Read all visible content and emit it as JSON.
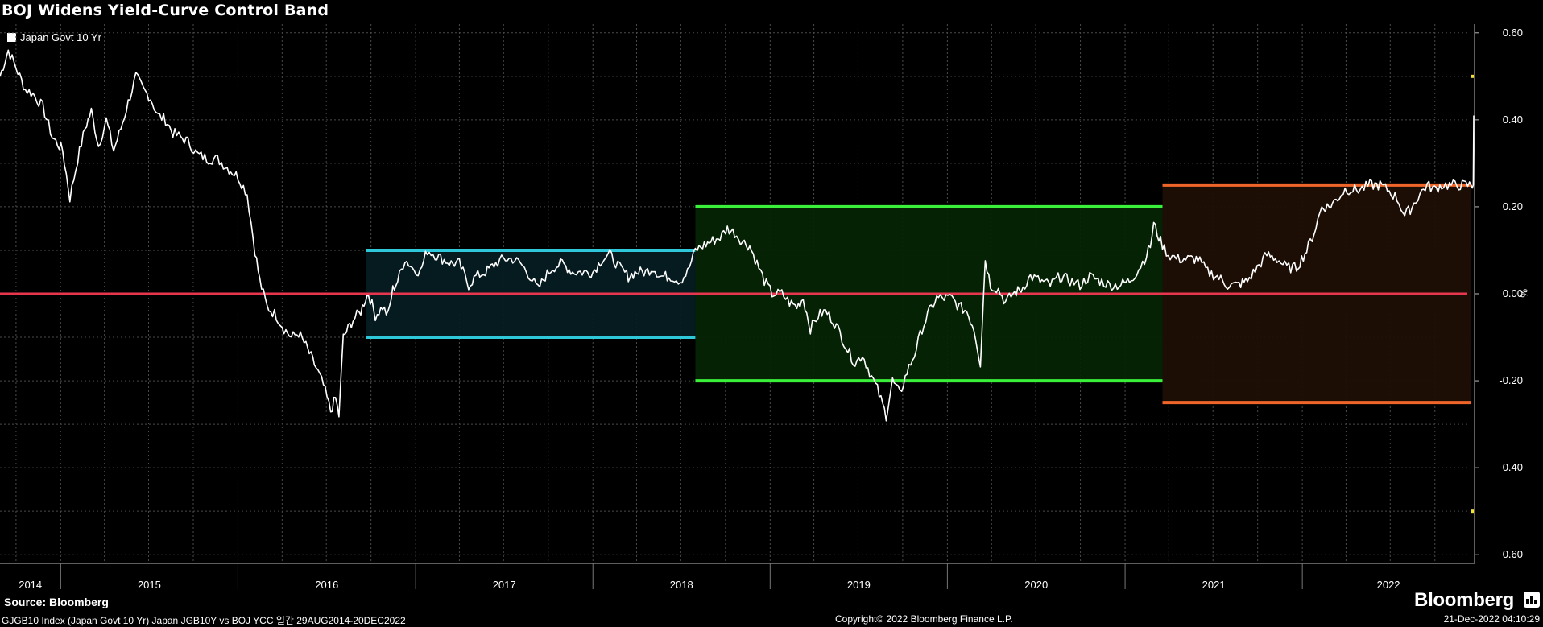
{
  "title": "BOJ Widens Yield-Curve Control Band",
  "legend": {
    "label": "Japan Govt 10 Yr",
    "color": "#ffffff"
  },
  "unit_label": "%",
  "source": "Source:  Bloomberg",
  "footnote": "GJGB10 Index (Japan Govt 10 Yr) Japan JGB10Y vs BOJ YCC  일간 29AUG2014-20DEC2022",
  "copyright": "Copyright© 2022 Bloomberg Finance L.P.",
  "timestamp": "21-Dec-2022 04:10:29",
  "brand": "Bloomberg",
  "chart_data": {
    "type": "line",
    "title": "BOJ Widens Yield-Curve Control Band",
    "y_ticks": [
      "0.60",
      "0.40",
      "0.20",
      "0.00",
      "-0.20",
      "-0.40",
      "-0.60"
    ],
    "x_labels": [
      "2014",
      "2015",
      "2016",
      "2017",
      "2018",
      "2019",
      "2020",
      "2021",
      "2022"
    ],
    "ylim": [
      -0.62,
      0.62
    ],
    "xlim": [
      "2014-08-29",
      "2022-12-20"
    ],
    "grid": true,
    "legend_position": "top-left",
    "series": [
      {
        "name": "Japan Govt 10 Yr",
        "color": "#ffffff",
        "points": [
          [
            "2014-08-29",
            0.5
          ],
          [
            "2014-09-15",
            0.56
          ],
          [
            "2014-10-01",
            0.52
          ],
          [
            "2014-10-20",
            0.47
          ],
          [
            "2014-11-05",
            0.46
          ],
          [
            "2014-11-25",
            0.43
          ],
          [
            "2014-12-15",
            0.36
          ],
          [
            "2015-01-05",
            0.33
          ],
          [
            "2015-01-20",
            0.22
          ],
          [
            "2015-02-05",
            0.31
          ],
          [
            "2015-02-20",
            0.38
          ],
          [
            "2015-03-05",
            0.42
          ],
          [
            "2015-03-20",
            0.34
          ],
          [
            "2015-04-05",
            0.4
          ],
          [
            "2015-04-20",
            0.33
          ],
          [
            "2015-05-05",
            0.38
          ],
          [
            "2015-05-20",
            0.44
          ],
          [
            "2015-06-05",
            0.5
          ],
          [
            "2015-06-20",
            0.47
          ],
          [
            "2015-07-05",
            0.45
          ],
          [
            "2015-07-20",
            0.41
          ],
          [
            "2015-08-05",
            0.4
          ],
          [
            "2015-08-20",
            0.37
          ],
          [
            "2015-09-05",
            0.36
          ],
          [
            "2015-09-20",
            0.35
          ],
          [
            "2015-10-10",
            0.32
          ],
          [
            "2015-11-01",
            0.31
          ],
          [
            "2015-11-20",
            0.31
          ],
          [
            "2015-12-10",
            0.29
          ],
          [
            "2016-01-01",
            0.27
          ],
          [
            "2016-01-20",
            0.23
          ],
          [
            "2016-02-05",
            0.1
          ],
          [
            "2016-02-15",
            0.03
          ],
          [
            "2016-03-01",
            -0.03
          ],
          [
            "2016-03-20",
            -0.05
          ],
          [
            "2016-04-05",
            -0.08
          ],
          [
            "2016-04-20",
            -0.1
          ],
          [
            "2016-05-05",
            -0.09
          ],
          [
            "2016-05-20",
            -0.12
          ],
          [
            "2016-06-10",
            -0.17
          ],
          [
            "2016-06-25",
            -0.21
          ],
          [
            "2016-07-10",
            -0.27
          ],
          [
            "2016-07-20",
            -0.24
          ],
          [
            "2016-07-27",
            -0.28
          ],
          [
            "2016-08-05",
            -0.1
          ],
          [
            "2016-08-15",
            -0.08
          ],
          [
            "2016-08-25",
            -0.06
          ],
          [
            "2016-09-10",
            -0.04
          ],
          [
            "2016-09-20",
            -0.01
          ],
          [
            "2016-09-26",
            0.0
          ],
          [
            "2016-10-10",
            -0.05
          ],
          [
            "2016-10-25",
            -0.03
          ],
          [
            "2016-11-05",
            -0.05
          ],
          [
            "2016-11-15",
            0.01
          ],
          [
            "2016-11-25",
            0.03
          ],
          [
            "2016-12-10",
            0.08
          ],
          [
            "2016-12-25",
            0.06
          ],
          [
            "2017-01-10",
            0.05
          ],
          [
            "2017-01-25",
            0.1
          ],
          [
            "2017-02-10",
            0.09
          ],
          [
            "2017-02-25",
            0.08
          ],
          [
            "2017-03-15",
            0.07
          ],
          [
            "2017-04-01",
            0.07
          ],
          [
            "2017-04-20",
            0.02
          ],
          [
            "2017-05-05",
            0.04
          ],
          [
            "2017-05-25",
            0.05
          ],
          [
            "2017-06-15",
            0.07
          ],
          [
            "2017-07-01",
            0.08
          ],
          [
            "2017-07-20",
            0.08
          ],
          [
            "2017-08-05",
            0.07
          ],
          [
            "2017-08-25",
            0.04
          ],
          [
            "2017-09-10",
            0.01
          ],
          [
            "2017-09-25",
            0.04
          ],
          [
            "2017-10-10",
            0.06
          ],
          [
            "2017-10-30",
            0.07
          ],
          [
            "2017-11-20",
            0.05
          ],
          [
            "2017-12-10",
            0.05
          ],
          [
            "2018-01-01",
            0.05
          ],
          [
            "2018-01-20",
            0.08
          ],
          [
            "2018-02-05",
            0.09
          ],
          [
            "2018-02-25",
            0.06
          ],
          [
            "2018-03-15",
            0.04
          ],
          [
            "2018-04-01",
            0.05
          ],
          [
            "2018-04-20",
            0.05
          ],
          [
            "2018-05-05",
            0.06
          ],
          [
            "2018-05-20",
            0.04
          ],
          [
            "2018-06-10",
            0.04
          ],
          [
            "2018-06-30",
            0.03
          ],
          [
            "2018-07-15",
            0.05
          ],
          [
            "2018-07-31",
            0.1
          ],
          [
            "2018-08-15",
            0.11
          ],
          [
            "2018-09-01",
            0.12
          ],
          [
            "2018-09-20",
            0.13
          ],
          [
            "2018-10-05",
            0.15
          ],
          [
            "2018-10-20",
            0.14
          ],
          [
            "2018-11-05",
            0.12
          ],
          [
            "2018-11-20",
            0.11
          ],
          [
            "2018-12-05",
            0.07
          ],
          [
            "2018-12-20",
            0.03
          ],
          [
            "2019-01-05",
            0.0
          ],
          [
            "2019-01-25",
            0.0
          ],
          [
            "2019-02-10",
            -0.02
          ],
          [
            "2019-02-25",
            -0.03
          ],
          [
            "2019-03-10",
            -0.01
          ],
          [
            "2019-03-25",
            -0.08
          ],
          [
            "2019-04-10",
            -0.05
          ],
          [
            "2019-04-25",
            -0.04
          ],
          [
            "2019-05-10",
            -0.06
          ],
          [
            "2019-05-25",
            -0.09
          ],
          [
            "2019-06-10",
            -0.13
          ],
          [
            "2019-06-25",
            -0.16
          ],
          [
            "2019-07-10",
            -0.14
          ],
          [
            "2019-07-25",
            -0.18
          ],
          [
            "2019-08-10",
            -0.22
          ],
          [
            "2019-08-28",
            -0.28
          ],
          [
            "2019-09-10",
            -0.2
          ],
          [
            "2019-09-25",
            -0.23
          ],
          [
            "2019-10-10",
            -0.18
          ],
          [
            "2019-10-25",
            -0.14
          ],
          [
            "2019-11-10",
            -0.08
          ],
          [
            "2019-11-25",
            -0.04
          ],
          [
            "2019-12-10",
            -0.01
          ],
          [
            "2019-12-25",
            -0.01
          ],
          [
            "2020-01-10",
            -0.01
          ],
          [
            "2020-01-25",
            -0.03
          ],
          [
            "2020-02-10",
            -0.04
          ],
          [
            "2020-02-25",
            -0.08
          ],
          [
            "2020-03-09",
            -0.16
          ],
          [
            "2020-03-19",
            0.08
          ],
          [
            "2020-03-30",
            0.02
          ],
          [
            "2020-04-15",
            0.01
          ],
          [
            "2020-04-30",
            -0.02
          ],
          [
            "2020-05-15",
            0.0
          ],
          [
            "2020-06-01",
            0.01
          ],
          [
            "2020-06-20",
            0.04
          ],
          [
            "2020-07-10",
            0.03
          ],
          [
            "2020-07-31",
            0.02
          ],
          [
            "2020-08-20",
            0.04
          ],
          [
            "2020-09-10",
            0.03
          ],
          [
            "2020-09-30",
            0.02
          ],
          [
            "2020-10-20",
            0.04
          ],
          [
            "2020-11-10",
            0.03
          ],
          [
            "2020-11-30",
            0.02
          ],
          [
            "2020-12-20",
            0.02
          ],
          [
            "2021-01-10",
            0.03
          ],
          [
            "2021-01-25",
            0.05
          ],
          [
            "2021-02-10",
            0.08
          ],
          [
            "2021-02-22",
            0.11
          ],
          [
            "2021-03-01",
            0.16
          ],
          [
            "2021-03-15",
            0.12
          ],
          [
            "2021-03-31",
            0.09
          ],
          [
            "2021-04-20",
            0.08
          ],
          [
            "2021-05-10",
            0.08
          ],
          [
            "2021-05-31",
            0.08
          ],
          [
            "2021-06-20",
            0.05
          ],
          [
            "2021-07-10",
            0.04
          ],
          [
            "2021-07-31",
            0.02
          ],
          [
            "2021-08-20",
            0.02
          ],
          [
            "2021-09-10",
            0.03
          ],
          [
            "2021-09-30",
            0.06
          ],
          [
            "2021-10-20",
            0.09
          ],
          [
            "2021-11-10",
            0.08
          ],
          [
            "2021-11-30",
            0.06
          ],
          [
            "2021-12-20",
            0.06
          ],
          [
            "2022-01-10",
            0.1
          ],
          [
            "2022-01-25",
            0.14
          ],
          [
            "2022-02-10",
            0.2
          ],
          [
            "2022-02-25",
            0.2
          ],
          [
            "2022-03-15",
            0.22
          ],
          [
            "2022-03-30",
            0.24
          ],
          [
            "2022-04-15",
            0.24
          ],
          [
            "2022-04-30",
            0.24
          ],
          [
            "2022-05-20",
            0.25
          ],
          [
            "2022-06-10",
            0.25
          ],
          [
            "2022-06-25",
            0.24
          ],
          [
            "2022-07-15",
            0.22
          ],
          [
            "2022-07-31",
            0.18
          ],
          [
            "2022-08-15",
            0.2
          ],
          [
            "2022-08-31",
            0.23
          ],
          [
            "2022-09-15",
            0.25
          ],
          [
            "2022-09-30",
            0.24
          ],
          [
            "2022-10-15",
            0.25
          ],
          [
            "2022-10-31",
            0.25
          ],
          [
            "2022-11-15",
            0.25
          ],
          [
            "2022-11-30",
            0.25
          ],
          [
            "2022-12-15",
            0.25
          ],
          [
            "2022-12-19",
            0.25
          ],
          [
            "2022-12-20",
            0.41
          ]
        ]
      }
    ],
    "bands": [
      {
        "start": "2016-09-21",
        "end": "2018-07-31",
        "upper": 0.1,
        "lower": -0.1,
        "color": "#2fc8db",
        "fill": "#061c22"
      },
      {
        "start": "2018-07-31",
        "end": "2021-03-19",
        "upper": 0.2,
        "lower": -0.2,
        "color": "#3af03a",
        "fill": "#052405"
      },
      {
        "start": "2021-03-19",
        "end": "2022-12-20",
        "upper": 0.25,
        "lower": -0.25,
        "color": "#f0662a",
        "fill": "#1e0e05"
      },
      {
        "start": "2022-12-20",
        "end": "2023-01-04",
        "upper": 0.5,
        "lower": -0.5,
        "color": "#f2e13a",
        "fill": "#24220a"
      }
    ],
    "reference_line": {
      "value": 0.0,
      "color": "#e8364e"
    }
  }
}
